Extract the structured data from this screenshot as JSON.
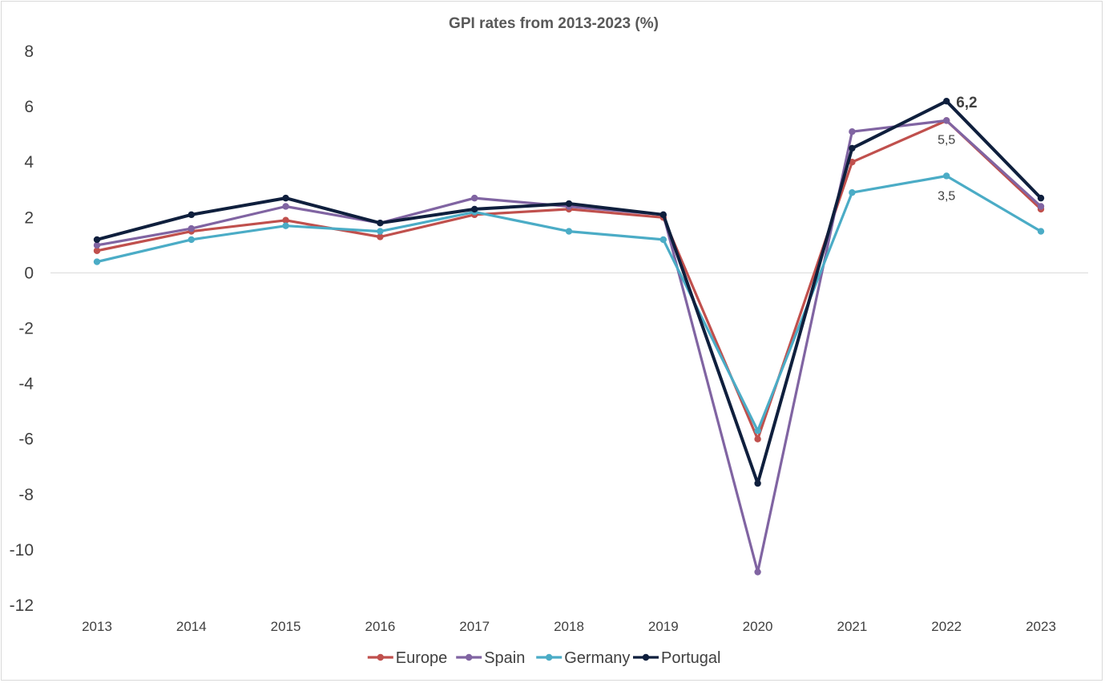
{
  "chart_data": {
    "type": "line",
    "title": "GPI rates from 2013-2023 (%)",
    "xlabel": "",
    "ylabel": "",
    "categories": [
      "2013",
      "2014",
      "2015",
      "2016",
      "2017",
      "2018",
      "2019",
      "2020",
      "2021",
      "2022",
      "2023"
    ],
    "ylim": [
      -12,
      8
    ],
    "yticks": [
      "8",
      "6",
      "4",
      "2",
      "0",
      "-2",
      "-4",
      "-6",
      "-8",
      "-10",
      "-12"
    ],
    "ytick_values": [
      8,
      6,
      4,
      2,
      0,
      -2,
      -4,
      -6,
      -8,
      -10,
      -12
    ],
    "grid": false,
    "zero_line": true,
    "legend_position": "bottom",
    "series": [
      {
        "name": "Europe",
        "color": "#c0504d",
        "values": [
          0.8,
          1.5,
          1.9,
          1.3,
          2.1,
          2.3,
          2.0,
          -6.0,
          4.0,
          5.5,
          2.3
        ]
      },
      {
        "name": "Spain",
        "color": "#8064a2",
        "values": [
          1.0,
          1.6,
          2.4,
          1.8,
          2.7,
          2.4,
          2.1,
          -10.8,
          5.1,
          5.5,
          2.4
        ]
      },
      {
        "name": "Germany",
        "color": "#4bacc6",
        "values": [
          0.4,
          1.2,
          1.7,
          1.5,
          2.2,
          1.5,
          1.2,
          -5.7,
          2.9,
          3.5,
          1.5
        ]
      },
      {
        "name": "Portugal",
        "color": "#0f1f3d",
        "values": [
          1.2,
          2.1,
          2.7,
          1.8,
          2.3,
          2.5,
          2.1,
          -7.6,
          4.5,
          6.2,
          2.7
        ]
      }
    ],
    "annotations": [
      {
        "text": "6,2",
        "series": "Portugal",
        "category": "2022",
        "value": 6.2,
        "bold": true
      },
      {
        "text": "5,5",
        "series": "Spain",
        "category": "2022",
        "value": 5.5,
        "bold": false
      },
      {
        "text": "3,5",
        "series": "Germany",
        "category": "2022",
        "value": 3.5,
        "bold": false
      }
    ]
  }
}
